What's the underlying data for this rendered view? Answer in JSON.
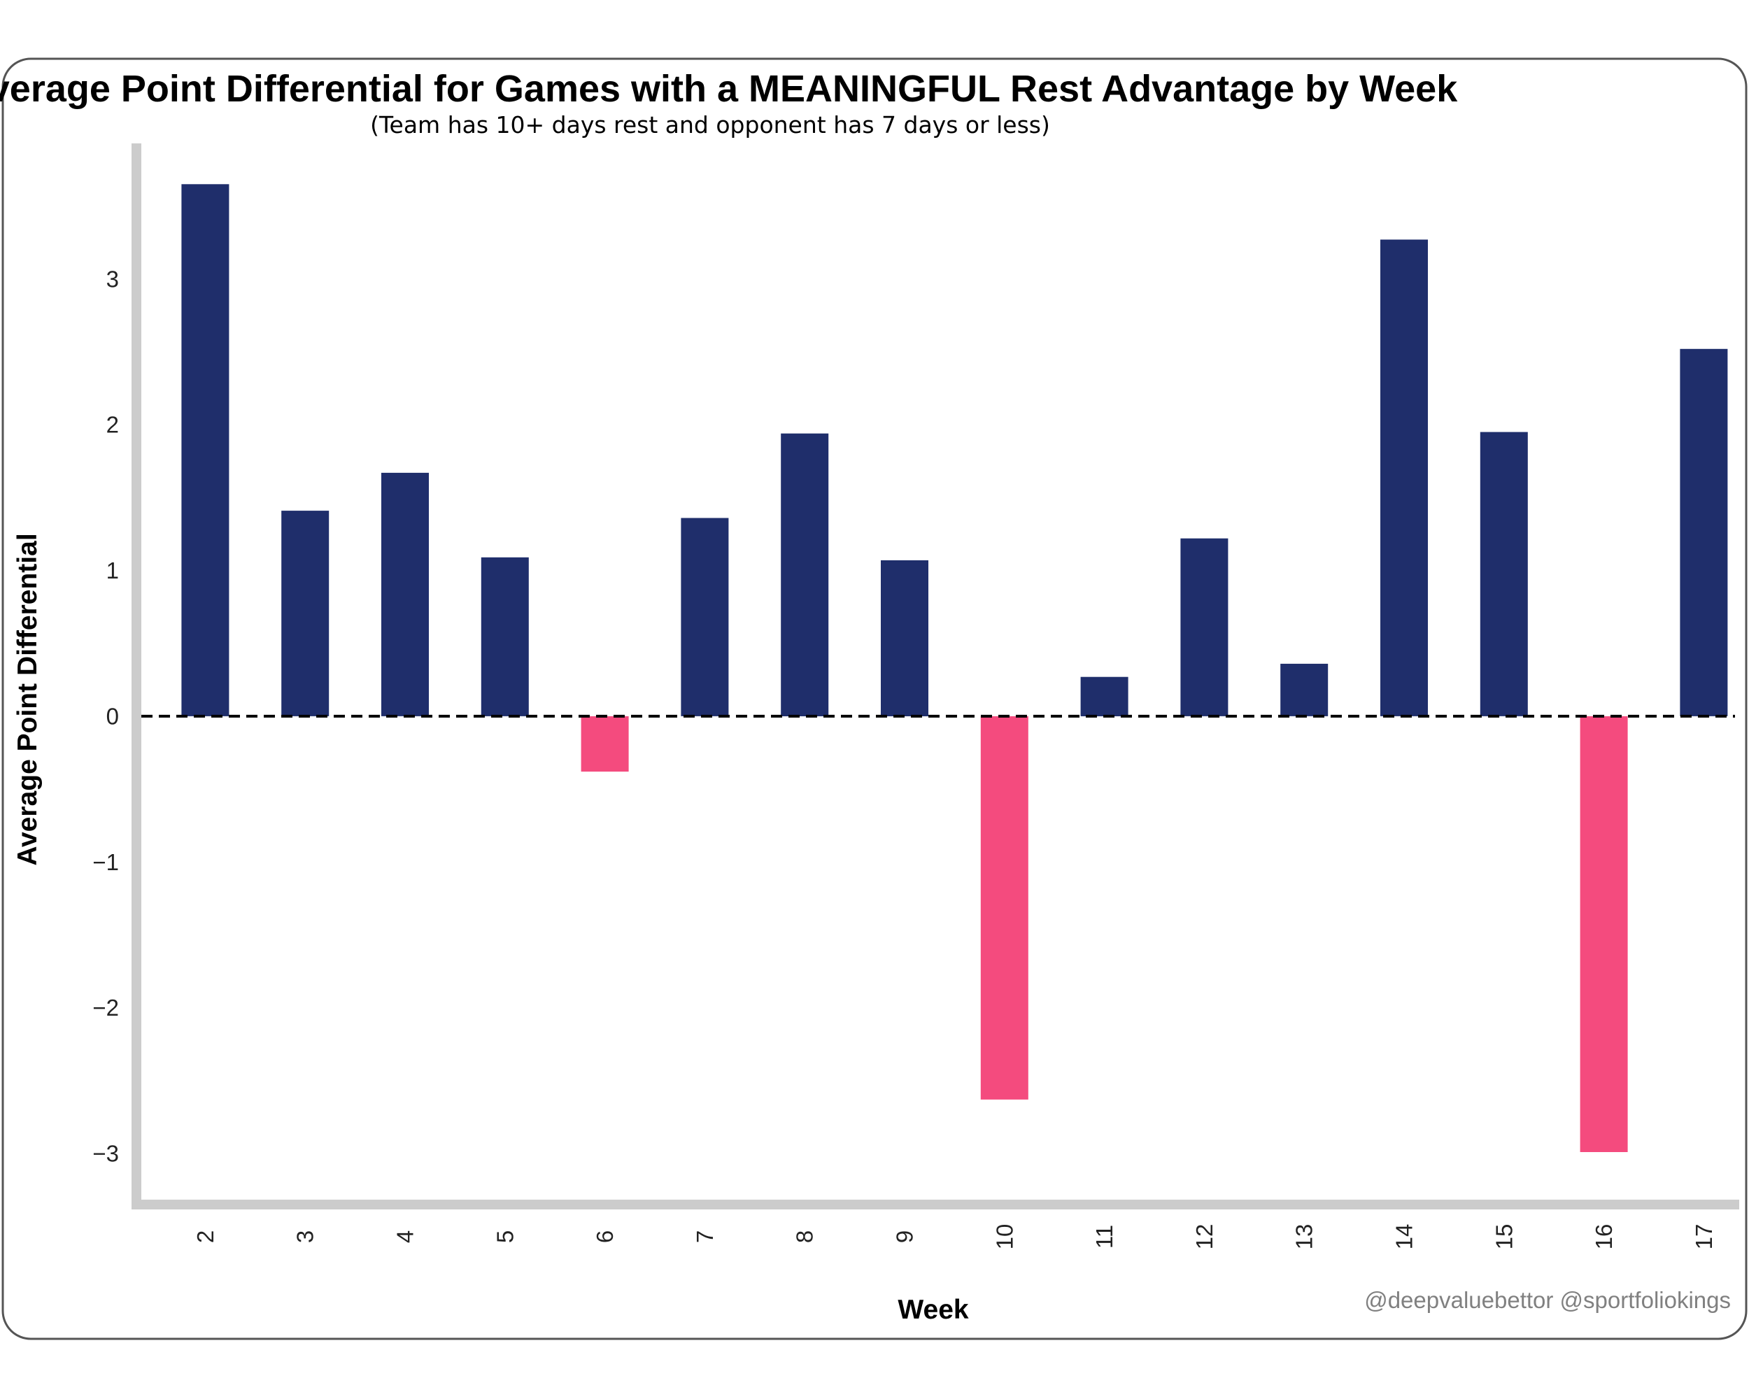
{
  "chart_data": {
    "type": "bar",
    "title": "Average Point Differential for Games with a MEANINGFUL Rest Advantage by Week",
    "subtitle": "(Team has 10+ days rest and opponent has 7 days or less)",
    "xlabel": "Week",
    "ylabel": "Average Point Differential",
    "categories": [
      "2",
      "3",
      "4",
      "5",
      "6",
      "7",
      "8",
      "9",
      "10",
      "11",
      "12",
      "13",
      "14",
      "15",
      "16",
      "17"
    ],
    "values": [
      3.65,
      1.41,
      1.67,
      1.09,
      -0.38,
      1.36,
      1.94,
      1.07,
      -2.63,
      0.27,
      1.22,
      0.36,
      3.27,
      1.95,
      -2.99,
      2.52
    ],
    "ylim": [
      -3.35,
      3.93
    ],
    "yticks": [
      -3,
      -2,
      -1,
      0,
      1,
      2,
      3
    ],
    "ytick_labels": [
      "−3",
      "−2",
      "−1",
      "0",
      "1",
      "2",
      "3"
    ],
    "baseline": 0,
    "baseline_style": "dashed",
    "grid": false,
    "colors": {
      "positive": "#1f2e6b",
      "negative": "#f44b7e",
      "axis": "#cccccc",
      "frame": "#555555"
    }
  },
  "watermark": "@deepvaluebettor @sportfoliokings"
}
